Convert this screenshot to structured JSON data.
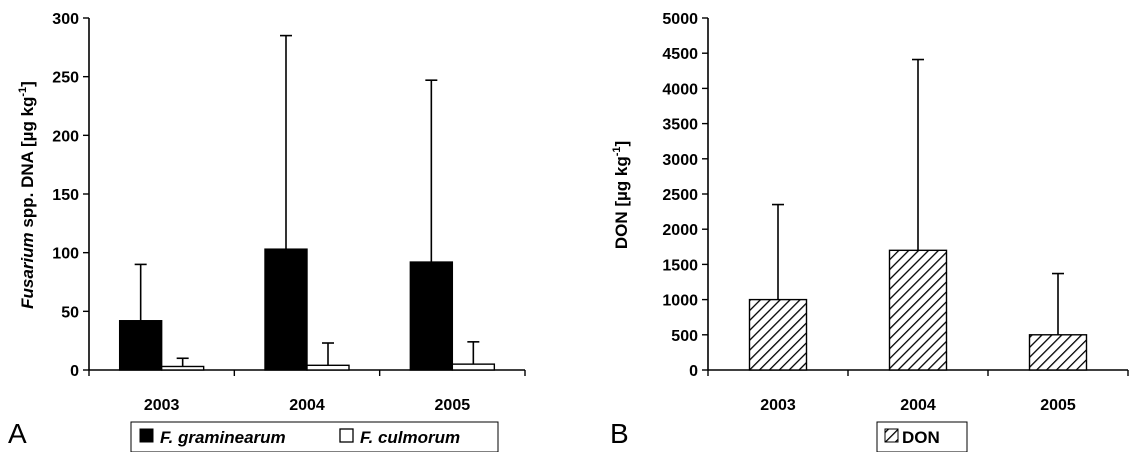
{
  "chart_data": [
    {
      "type": "bar",
      "panel_label": "A",
      "ylabel_italic": "Fusarium",
      "ylabel_rest": " spp. DNA [µg kg",
      "ylabel_sup": "-1",
      "ylabel_end": "]",
      "categories": [
        "2003",
        "2004",
        "2005"
      ],
      "ylim": [
        0,
        300
      ],
      "yticks": [
        0,
        50,
        100,
        150,
        200,
        250,
        300
      ],
      "legend_position": "bottom",
      "series": [
        {
          "name": "F. graminearum",
          "values": [
            42,
            103,
            92
          ],
          "errors": [
            48,
            182,
            155
          ],
          "color": "#000000"
        },
        {
          "name": "F. culmorum",
          "values": [
            3,
            4,
            5
          ],
          "errors": [
            7,
            19,
            19
          ],
          "color": "#ffffff"
        }
      ]
    },
    {
      "type": "bar",
      "panel_label": "B",
      "ylabel_main": "DON [µg kg",
      "ylabel_sup": "-1",
      "ylabel_end": "]",
      "categories": [
        "2003",
        "2004",
        "2005"
      ],
      "ylim": [
        0,
        5000
      ],
      "yticks": [
        0,
        500,
        1000,
        1500,
        2000,
        2500,
        3000,
        3500,
        4000,
        4500,
        5000
      ],
      "legend_position": "bottom",
      "series": [
        {
          "name": "DON",
          "values": [
            1000,
            1700,
            500
          ],
          "errors": [
            1350,
            2710,
            870
          ],
          "pattern": "diagonal-hatch"
        }
      ]
    }
  ]
}
